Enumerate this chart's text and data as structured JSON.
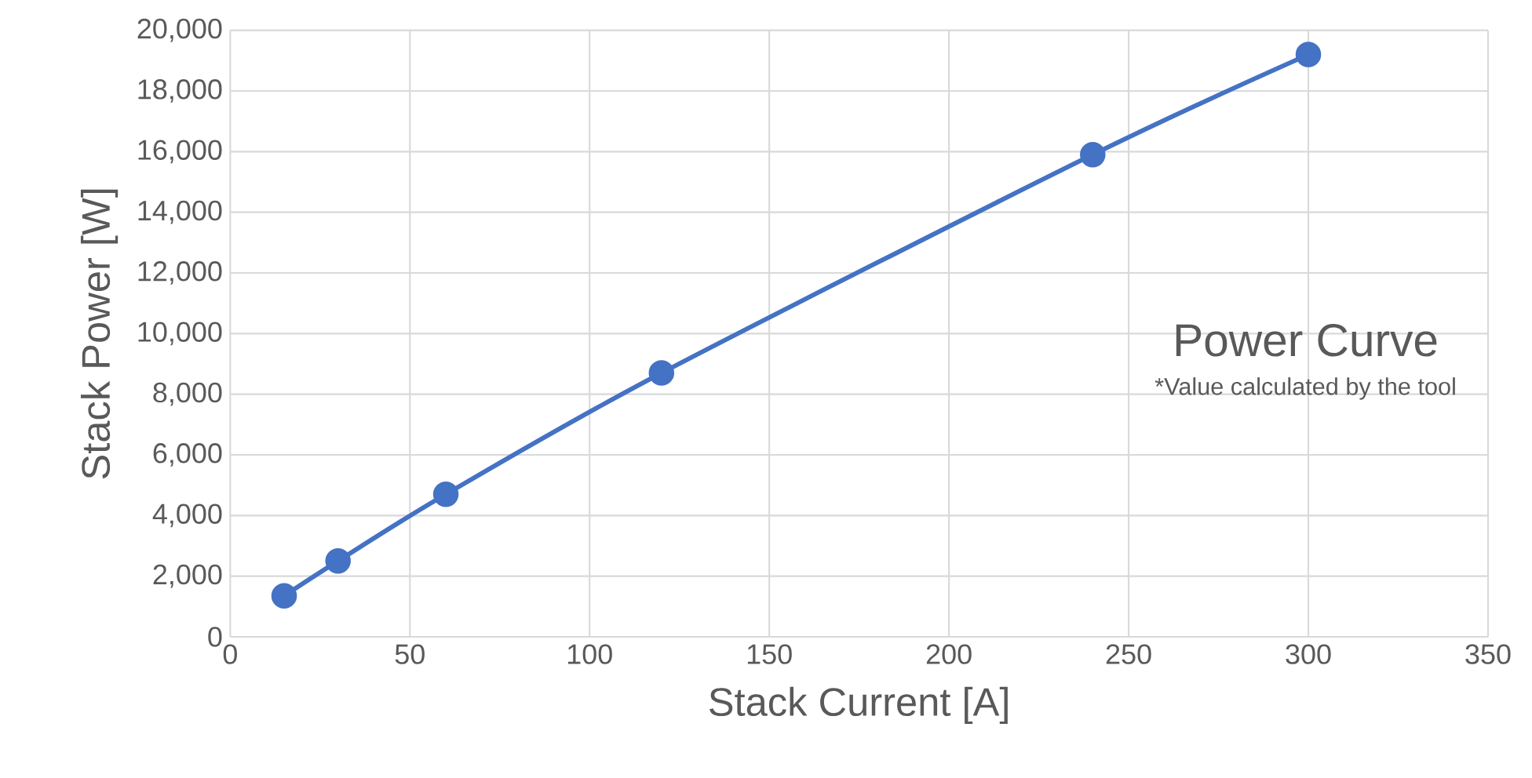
{
  "chart_data": {
    "type": "line",
    "title": "Power Curve",
    "annotations": [
      "*Value calculated by the tool"
    ],
    "xlabel": "Stack Current [A]",
    "ylabel": "Stack Power [W]",
    "x": [
      15,
      30,
      60,
      120,
      240,
      300
    ],
    "series": [
      {
        "color": "#4472c4",
        "values": [
          1350,
          2500,
          4700,
          8700,
          15900,
          19200
        ]
      }
    ],
    "xlim": [
      0,
      350
    ],
    "xticks": [
      0,
      50,
      100,
      150,
      200,
      250,
      300,
      350
    ],
    "ylim": [
      0,
      20000
    ],
    "yticks": [
      {
        "value": 0,
        "label": "0"
      },
      {
        "value": 2000,
        "label": "2,000"
      },
      {
        "value": 4000,
        "label": "4,000"
      },
      {
        "value": 6000,
        "label": "6,000"
      },
      {
        "value": 8000,
        "label": "8,000"
      },
      {
        "value": 10000,
        "label": "10,000"
      },
      {
        "value": 12000,
        "label": "12,000"
      },
      {
        "value": 14000,
        "label": "14,000"
      },
      {
        "value": 16000,
        "label": "16,000"
      },
      {
        "value": 18000,
        "label": "18,000"
      },
      {
        "value": 20000,
        "label": "20,000"
      }
    ],
    "grid": true,
    "marker": "circle",
    "line_style": "solid"
  }
}
